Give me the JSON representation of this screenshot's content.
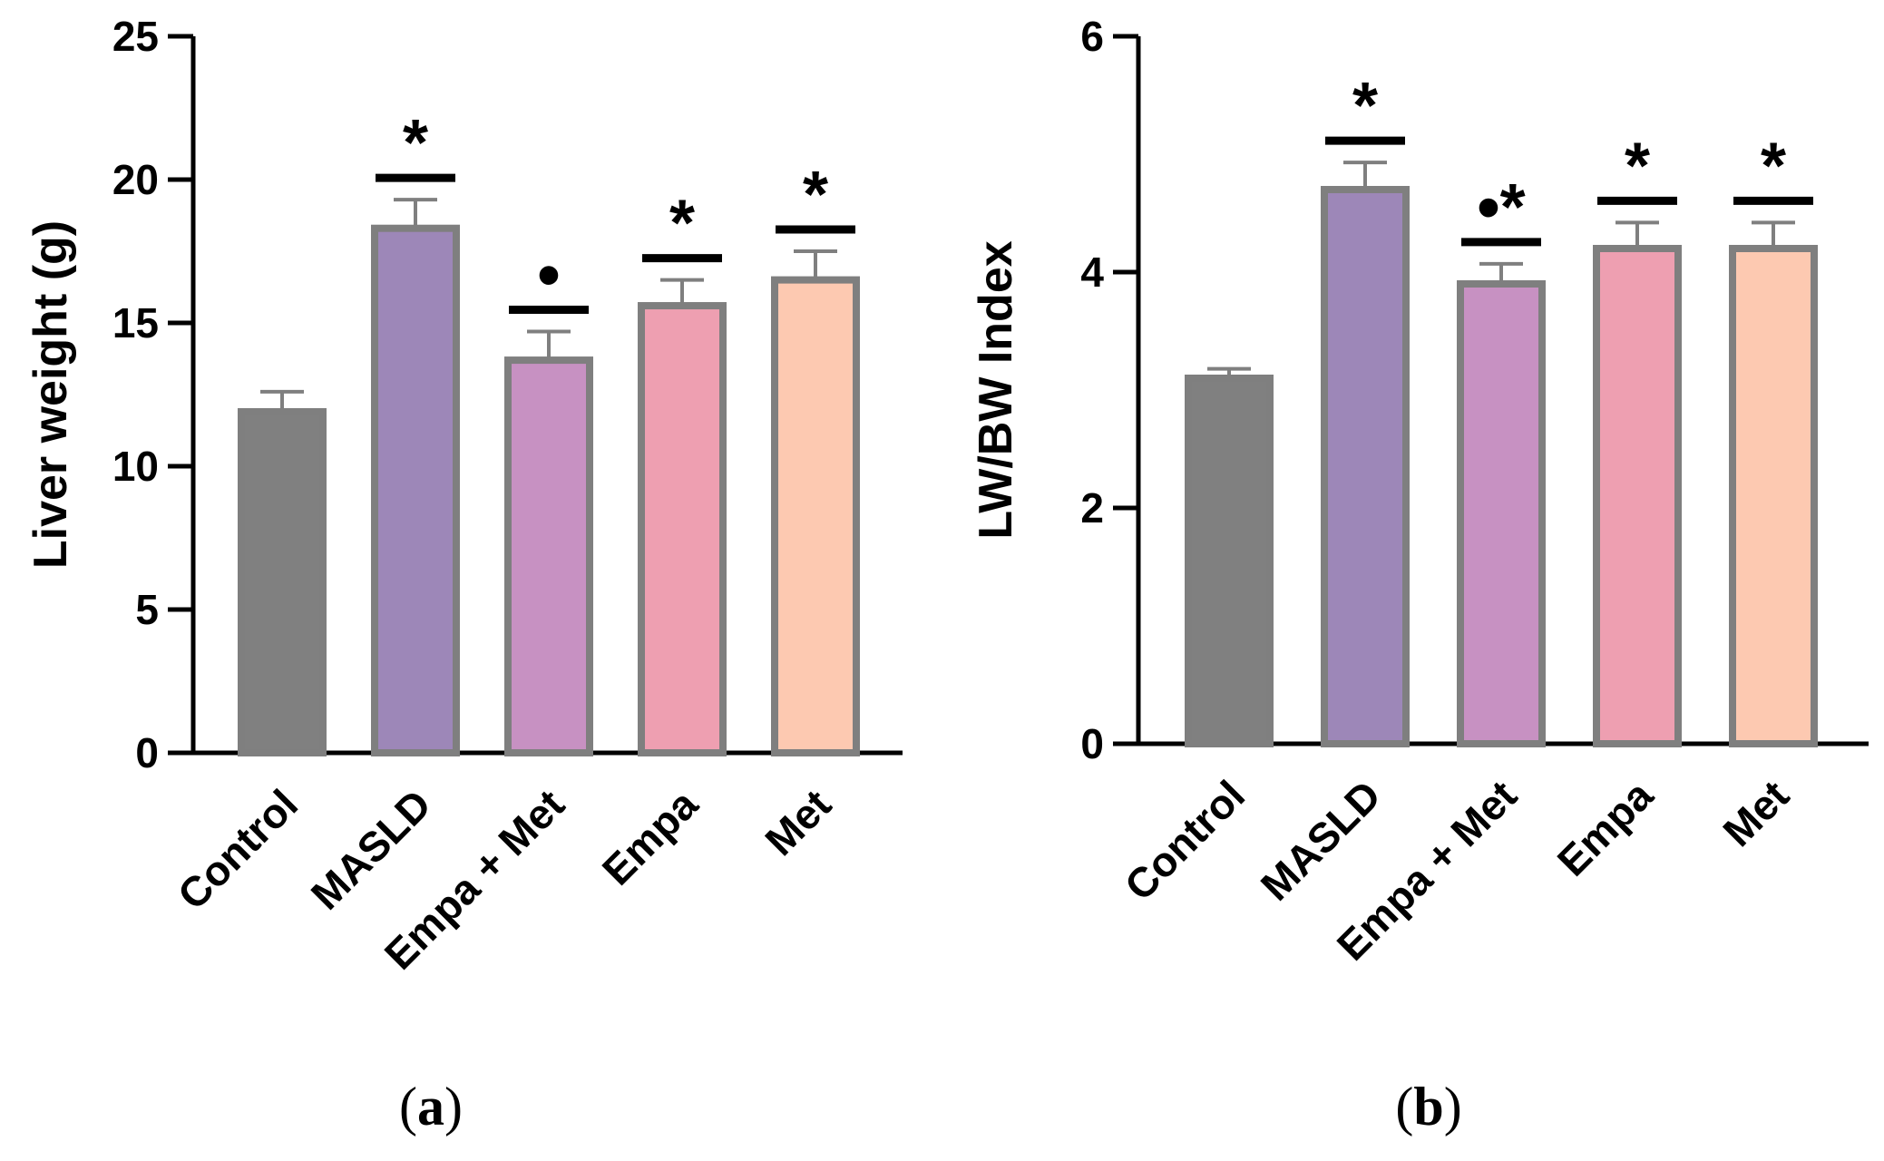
{
  "chart_data": [
    {
      "type": "bar",
      "categories": [
        "Control",
        "MASLD",
        "Empa + Met",
        "Empa",
        "Met"
      ],
      "values": [
        11.9,
        18.3,
        13.7,
        15.6,
        16.5
      ],
      "errors": [
        0.7,
        1.0,
        1.0,
        0.9,
        1.0
      ],
      "significance": [
        "",
        "*",
        "•",
        "*",
        "*"
      ],
      "colors": [
        "#808080",
        "#9d87b8",
        "#c791c2",
        "#ee9fb1",
        "#fdc9b1"
      ],
      "bar_edge_color": "#7f7f7f",
      "xlabel": "",
      "ylabel": "Liver weight (g)",
      "ylim": [
        0,
        25
      ],
      "yticks": [
        0,
        5,
        10,
        15,
        20,
        25
      ],
      "panel_label": "(a)",
      "grid": false
    },
    {
      "type": "bar",
      "categories": [
        "Control",
        "MASLD",
        "Empa + Met",
        "Empa",
        "Met"
      ],
      "values": [
        3.1,
        4.7,
        3.9,
        4.2,
        4.2
      ],
      "errors": [
        0.08,
        0.23,
        0.17,
        0.22,
        0.22
      ],
      "significance": [
        "",
        "*",
        "•*",
        "*",
        "*"
      ],
      "colors": [
        "#808080",
        "#9d87b8",
        "#c791c2",
        "#ee9fb1",
        "#fdc9b1"
      ],
      "bar_edge_color": "#7f7f7f",
      "xlabel": "",
      "ylabel": "LW/BW  Index",
      "ylim": [
        0,
        6
      ],
      "yticks": [
        0,
        2,
        4,
        6
      ],
      "panel_label": "(b)",
      "grid": false
    }
  ]
}
